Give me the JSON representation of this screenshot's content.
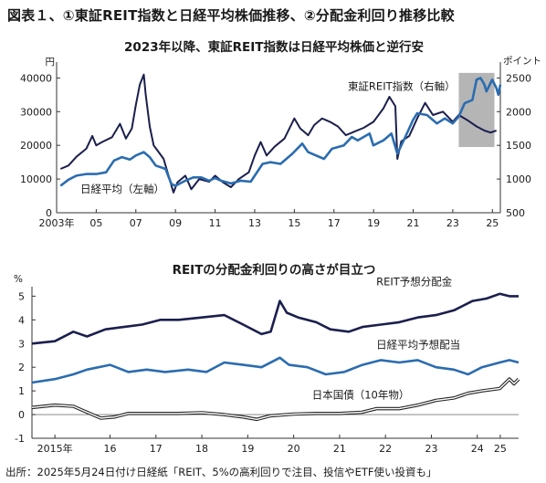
{
  "page": {
    "title": "図表１、①東証REIT指数と日経平均株価推移、②分配金利回り推移比較",
    "source": "出所：2025年5月24日付け日経紙「REIT、5%の高利回りで注目、投信やETF使い投資も」"
  },
  "colors": {
    "navy": "#1b1f4d",
    "blue": "#2b6cb0",
    "highlight": "#b5b5b5",
    "axis": "#333333"
  },
  "chart_data": [
    {
      "type": "line",
      "title": "2023年以降、東証REIT指数は日経平均株価と逆行安",
      "left_unit": "円",
      "right_unit": "ポイント",
      "x_range": [
        2003,
        2025.4
      ],
      "ylim_left": [
        0,
        42000
      ],
      "ylim_right": [
        500,
        2600
      ],
      "left_ticks": [
        "0",
        "10000",
        "20000",
        "30000",
        "40000"
      ],
      "right_ticks": [
        "500",
        "1000",
        "1500",
        "2000",
        "2500"
      ],
      "x_tick_labels": [
        {
          "year": 2003,
          "label": "2003年"
        },
        {
          "year": 2005,
          "label": "05"
        },
        {
          "year": 2007,
          "label": "07"
        },
        {
          "year": 2009,
          "label": "09"
        },
        {
          "year": 2011,
          "label": "11"
        },
        {
          "year": 2013,
          "label": "13"
        },
        {
          "year": 2015,
          "label": "15"
        },
        {
          "year": 2017,
          "label": "17"
        },
        {
          "year": 2019,
          "label": "19"
        },
        {
          "year": 2021,
          "label": "21"
        },
        {
          "year": 2023,
          "label": "23"
        },
        {
          "year": 2025,
          "label": "25"
        }
      ],
      "highlight_range": [
        2023.3,
        2025.1
      ],
      "series": [
        {
          "name": "東証REIT指数（右軸）",
          "axis": "right",
          "color": "#1b1f4d",
          "points": [
            [
              2003.2,
              1150
            ],
            [
              2003.6,
              1200
            ],
            [
              2004.0,
              1330
            ],
            [
              2004.5,
              1450
            ],
            [
              2004.8,
              1640
            ],
            [
              2005.0,
              1500
            ],
            [
              2005.3,
              1550
            ],
            [
              2005.8,
              1620
            ],
            [
              2006.2,
              1820
            ],
            [
              2006.5,
              1600
            ],
            [
              2006.8,
              1750
            ],
            [
              2007.0,
              2100
            ],
            [
              2007.2,
              2400
            ],
            [
              2007.4,
              2550
            ],
            [
              2007.5,
              2250
            ],
            [
              2007.7,
              1780
            ],
            [
              2007.9,
              1500
            ],
            [
              2008.1,
              1420
            ],
            [
              2008.4,
              1300
            ],
            [
              2008.6,
              1100
            ],
            [
              2008.9,
              800
            ],
            [
              2009.1,
              950
            ],
            [
              2009.5,
              1050
            ],
            [
              2009.8,
              850
            ],
            [
              2010.2,
              1000
            ],
            [
              2010.7,
              960
            ],
            [
              2011.0,
              1050
            ],
            [
              2011.4,
              950
            ],
            [
              2011.8,
              880
            ],
            [
              2012.2,
              1000
            ],
            [
              2012.7,
              1100
            ],
            [
              2013.0,
              1350
            ],
            [
              2013.3,
              1550
            ],
            [
              2013.6,
              1350
            ],
            [
              2014.0,
              1480
            ],
            [
              2014.5,
              1600
            ],
            [
              2015.0,
              1900
            ],
            [
              2015.3,
              1750
            ],
            [
              2015.7,
              1650
            ],
            [
              2016.0,
              1800
            ],
            [
              2016.4,
              1900
            ],
            [
              2016.8,
              1850
            ],
            [
              2017.2,
              1780
            ],
            [
              2017.6,
              1650
            ],
            [
              2018.0,
              1700
            ],
            [
              2018.5,
              1760
            ],
            [
              2019.0,
              1850
            ],
            [
              2019.5,
              2050
            ],
            [
              2019.8,
              2220
            ],
            [
              2020.1,
              2080
            ],
            [
              2020.2,
              1300
            ],
            [
              2020.4,
              1560
            ],
            [
              2020.8,
              1640
            ],
            [
              2021.2,
              1900
            ],
            [
              2021.6,
              2130
            ],
            [
              2022.0,
              1950
            ],
            [
              2022.5,
              2000
            ],
            [
              2023.0,
              1850
            ],
            [
              2023.3,
              1950
            ],
            [
              2023.7,
              1880
            ],
            [
              2024.2,
              1780
            ],
            [
              2024.6,
              1720
            ],
            [
              2024.9,
              1690
            ],
            [
              2025.2,
              1720
            ]
          ]
        },
        {
          "name": "日経平均（左軸）",
          "axis": "left",
          "color": "#2b6cb0",
          "points": [
            [
              2003.2,
              8000
            ],
            [
              2003.6,
              9800
            ],
            [
              2004.0,
              11000
            ],
            [
              2004.5,
              11500
            ],
            [
              2005.0,
              11500
            ],
            [
              2005.5,
              12000
            ],
            [
              2005.9,
              15500
            ],
            [
              2006.3,
              16500
            ],
            [
              2006.7,
              15800
            ],
            [
              2007.0,
              17000
            ],
            [
              2007.4,
              18000
            ],
            [
              2007.7,
              16500
            ],
            [
              2008.0,
              14000
            ],
            [
              2008.5,
              13000
            ],
            [
              2008.8,
              8500
            ],
            [
              2009.0,
              8000
            ],
            [
              2009.5,
              9500
            ],
            [
              2009.9,
              10500
            ],
            [
              2010.3,
              10500
            ],
            [
              2010.7,
              9500
            ],
            [
              2011.0,
              10300
            ],
            [
              2011.3,
              9500
            ],
            [
              2011.8,
              8700
            ],
            [
              2012.3,
              9500
            ],
            [
              2012.8,
              9200
            ],
            [
              2013.0,
              11000
            ],
            [
              2013.4,
              14500
            ],
            [
              2013.8,
              15000
            ],
            [
              2014.3,
              14500
            ],
            [
              2014.9,
              17500
            ],
            [
              2015.4,
              20500
            ],
            [
              2015.7,
              18000
            ],
            [
              2016.1,
              17000
            ],
            [
              2016.5,
              16000
            ],
            [
              2016.9,
              19000
            ],
            [
              2017.5,
              20000
            ],
            [
              2017.9,
              22500
            ],
            [
              2018.2,
              21500
            ],
            [
              2018.8,
              23500
            ],
            [
              2018.99,
              20000
            ],
            [
              2019.5,
              21500
            ],
            [
              2019.9,
              23500
            ],
            [
              2020.2,
              17500
            ],
            [
              2020.6,
              22500
            ],
            [
              2020.99,
              27500
            ],
            [
              2021.2,
              29500
            ],
            [
              2021.7,
              29000
            ],
            [
              2022.2,
              26500
            ],
            [
              2022.6,
              28000
            ],
            [
              2022.99,
              26500
            ],
            [
              2023.3,
              28500
            ],
            [
              2023.6,
              32500
            ],
            [
              2023.99,
              33500
            ],
            [
              2024.2,
              39500
            ],
            [
              2024.4,
              40000
            ],
            [
              2024.6,
              38000
            ],
            [
              2024.7,
              36000
            ],
            [
              2024.99,
              39500
            ],
            [
              2025.2,
              37000
            ],
            [
              2025.3,
              35000
            ],
            [
              2025.4,
              38000
            ]
          ]
        }
      ],
      "series_labels": [
        {
          "text": "東証REIT指数（右軸）",
          "x": 2017.7,
          "y_left": 36500
        },
        {
          "text": "日経平均（左軸）",
          "x": 2004.2,
          "y_left": 6000
        }
      ]
    },
    {
      "type": "line",
      "title": "REITの分配金利回りの高さが目立つ",
      "unit": "%",
      "x_range": [
        2014.8,
        2025.4
      ],
      "ylim": [
        -1,
        5.4
      ],
      "y_ticks": [
        "-1",
        "0",
        "1",
        "2",
        "3",
        "4",
        "5"
      ],
      "x_tick_labels": [
        {
          "year": 2015.3,
          "label": "2015年"
        },
        {
          "year": 2016.5,
          "label": "16"
        },
        {
          "year": 2017.5,
          "label": "17"
        },
        {
          "year": 2018.5,
          "label": "18"
        },
        {
          "year": 2019.5,
          "label": "19"
        },
        {
          "year": 2020.5,
          "label": "20"
        },
        {
          "year": 2021.5,
          "label": "21"
        },
        {
          "year": 2022.5,
          "label": "22"
        },
        {
          "year": 2023.5,
          "label": "23"
        },
        {
          "year": 2024.5,
          "label": "24"
        },
        {
          "year": 2025.0,
          "label": "25"
        }
      ],
      "series": [
        {
          "name": "REIT予想分配金",
          "style": "navy",
          "points": [
            [
              2014.8,
              3.0
            ],
            [
              2015.3,
              3.1
            ],
            [
              2015.7,
              3.5
            ],
            [
              2016.0,
              3.3
            ],
            [
              2016.4,
              3.6
            ],
            [
              2016.8,
              3.7
            ],
            [
              2017.2,
              3.8
            ],
            [
              2017.6,
              4.0
            ],
            [
              2018.0,
              4.0
            ],
            [
              2018.5,
              4.1
            ],
            [
              2018.99,
              4.2
            ],
            [
              2019.4,
              3.8
            ],
            [
              2019.8,
              3.4
            ],
            [
              2020.0,
              3.5
            ],
            [
              2020.2,
              4.8
            ],
            [
              2020.35,
              4.3
            ],
            [
              2020.6,
              4.1
            ],
            [
              2020.99,
              3.9
            ],
            [
              2021.3,
              3.6
            ],
            [
              2021.7,
              3.5
            ],
            [
              2022.0,
              3.7
            ],
            [
              2022.4,
              3.8
            ],
            [
              2022.8,
              3.9
            ],
            [
              2023.2,
              4.1
            ],
            [
              2023.6,
              4.2
            ],
            [
              2023.99,
              4.4
            ],
            [
              2024.4,
              4.8
            ],
            [
              2024.7,
              4.9
            ],
            [
              2024.99,
              5.1
            ],
            [
              2025.2,
              5.0
            ],
            [
              2025.4,
              5.0
            ]
          ]
        },
        {
          "name": "日経平均予想配当",
          "style": "blue",
          "points": [
            [
              2014.8,
              1.35
            ],
            [
              2015.3,
              1.5
            ],
            [
              2015.7,
              1.7
            ],
            [
              2016.0,
              1.9
            ],
            [
              2016.5,
              2.1
            ],
            [
              2016.9,
              1.8
            ],
            [
              2017.3,
              1.9
            ],
            [
              2017.7,
              1.8
            ],
            [
              2018.2,
              1.9
            ],
            [
              2018.6,
              1.8
            ],
            [
              2018.99,
              2.2
            ],
            [
              2019.4,
              2.1
            ],
            [
              2019.8,
              2.0
            ],
            [
              2020.2,
              2.4
            ],
            [
              2020.4,
              2.1
            ],
            [
              2020.8,
              2.0
            ],
            [
              2021.2,
              1.7
            ],
            [
              2021.6,
              1.8
            ],
            [
              2022.0,
              2.1
            ],
            [
              2022.4,
              2.3
            ],
            [
              2022.8,
              2.2
            ],
            [
              2023.2,
              2.3
            ],
            [
              2023.6,
              2.0
            ],
            [
              2023.99,
              1.9
            ],
            [
              2024.3,
              1.7
            ],
            [
              2024.6,
              2.0
            ],
            [
              2024.99,
              2.2
            ],
            [
              2025.2,
              2.3
            ],
            [
              2025.4,
              2.2
            ]
          ]
        },
        {
          "name": "日本国債（10年物）",
          "style": "double",
          "points": [
            [
              2014.8,
              0.3
            ],
            [
              2015.3,
              0.4
            ],
            [
              2015.7,
              0.35
            ],
            [
              2016.0,
              0.1
            ],
            [
              2016.3,
              -0.15
            ],
            [
              2016.6,
              -0.1
            ],
            [
              2016.9,
              0.05
            ],
            [
              2017.5,
              0.05
            ],
            [
              2018.0,
              0.05
            ],
            [
              2018.5,
              0.08
            ],
            [
              2018.99,
              0.0
            ],
            [
              2019.4,
              -0.1
            ],
            [
              2019.7,
              -0.2
            ],
            [
              2019.99,
              -0.05
            ],
            [
              2020.5,
              0.02
            ],
            [
              2020.99,
              0.05
            ],
            [
              2021.5,
              0.05
            ],
            [
              2021.99,
              0.1
            ],
            [
              2022.3,
              0.25
            ],
            [
              2022.8,
              0.25
            ],
            [
              2023.2,
              0.4
            ],
            [
              2023.6,
              0.6
            ],
            [
              2023.99,
              0.7
            ],
            [
              2024.3,
              0.9
            ],
            [
              2024.6,
              1.0
            ],
            [
              2024.99,
              1.1
            ],
            [
              2025.2,
              1.5
            ],
            [
              2025.3,
              1.3
            ],
            [
              2025.4,
              1.5
            ]
          ]
        }
      ],
      "series_labels": [
        {
          "text": "REIT予想分配金",
          "x": 2022.3,
          "y": 5.45
        },
        {
          "text": "日経平均予想配当",
          "x": 2022.3,
          "y": 2.8
        },
        {
          "text": "日本国債（10年物）",
          "x": 2020.9,
          "y": 0.68
        }
      ]
    }
  ]
}
